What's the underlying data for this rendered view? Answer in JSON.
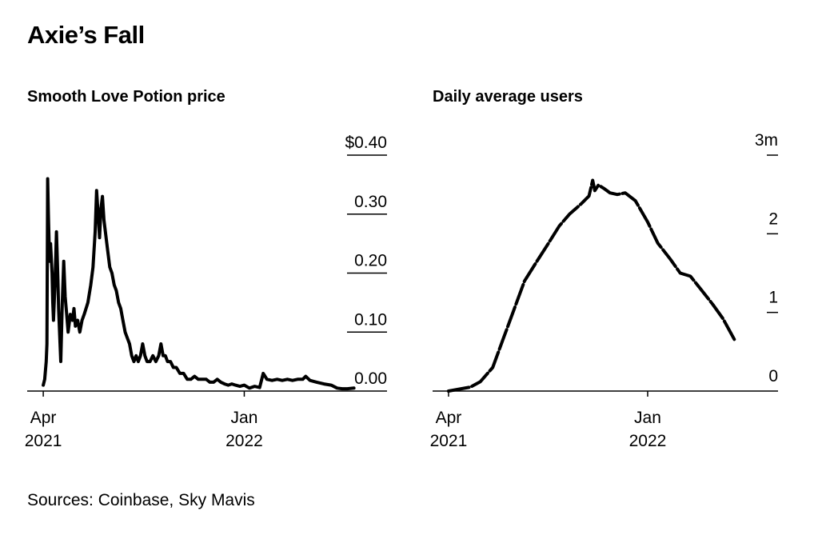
{
  "title": "Axie’s Fall",
  "sources": "Sources: Coinbase, Sky Mavis",
  "colors": {
    "line": "#000000",
    "background": "#ffffff"
  },
  "chart_data": [
    {
      "type": "line",
      "title": "Smooth Love Potion price",
      "xlabel": "",
      "ylabel": "",
      "ylim": [
        0,
        0.4
      ],
      "y_ticks": [
        0,
        0.1,
        0.2,
        0.3,
        0.4
      ],
      "y_tick_labels": [
        "0.00",
        "0.10",
        "0.20",
        "0.30",
        "$0.40"
      ],
      "x_ticks": [
        {
          "date": "2021-04-01",
          "line1": "Apr",
          "line2": "2021"
        },
        {
          "date": "2022-01-01",
          "line1": "Jan",
          "line2": "2022"
        }
      ],
      "x_range": [
        "2021-03-10",
        "2022-06-30"
      ],
      "grid": "horizontal",
      "series": [
        {
          "dash": "solid",
          "points": [
            [
              "2021-04-01",
              0.01
            ],
            [
              "2021-04-03",
              0.02
            ],
            [
              "2021-04-05",
              0.05
            ],
            [
              "2021-04-06",
              0.08
            ],
            [
              "2021-04-07",
              0.36
            ],
            [
              "2021-04-08",
              0.3
            ],
            [
              "2021-04-09",
              0.25
            ],
            [
              "2021-04-10",
              0.22
            ],
            [
              "2021-04-11",
              0.25
            ],
            [
              "2021-04-13",
              0.2
            ],
            [
              "2021-04-14",
              0.15
            ],
            [
              "2021-04-15",
              0.12
            ],
            [
              "2021-04-17",
              0.18
            ],
            [
              "2021-04-19",
              0.27
            ],
            [
              "2021-04-21",
              0.19
            ],
            [
              "2021-04-22",
              0.14
            ],
            [
              "2021-04-24",
              0.08
            ],
            [
              "2021-04-25",
              0.05
            ],
            [
              "2021-04-27",
              0.15
            ],
            [
              "2021-04-29",
              0.22
            ],
            [
              "2021-05-01",
              0.16
            ],
            [
              "2021-05-03",
              0.13
            ],
            [
              "2021-05-05",
              0.1
            ],
            [
              "2021-05-08",
              0.13
            ],
            [
              "2021-05-11",
              0.12
            ],
            [
              "2021-05-13",
              0.14
            ],
            [
              "2021-05-15",
              0.11
            ],
            [
              "2021-05-18",
              0.12
            ],
            [
              "2021-05-21",
              0.1
            ],
            [
              "2021-05-24",
              0.12
            ],
            [
              "2021-05-27",
              0.13
            ],
            [
              "2021-06-01",
              0.15
            ],
            [
              "2021-06-05",
              0.18
            ],
            [
              "2021-06-08",
              0.21
            ],
            [
              "2021-06-11",
              0.27
            ],
            [
              "2021-06-13",
              0.34
            ],
            [
              "2021-06-15",
              0.3
            ],
            [
              "2021-06-17",
              0.26
            ],
            [
              "2021-06-19",
              0.31
            ],
            [
              "2021-06-21",
              0.33
            ],
            [
              "2021-06-23",
              0.29
            ],
            [
              "2021-06-25",
              0.27
            ],
            [
              "2021-06-28",
              0.24
            ],
            [
              "2021-07-01",
              0.21
            ],
            [
              "2021-07-04",
              0.2
            ],
            [
              "2021-07-07",
              0.18
            ],
            [
              "2021-07-10",
              0.17
            ],
            [
              "2021-07-13",
              0.15
            ],
            [
              "2021-07-16",
              0.14
            ],
            [
              "2021-07-19",
              0.12
            ],
            [
              "2021-07-22",
              0.1
            ],
            [
              "2021-07-25",
              0.09
            ],
            [
              "2021-07-28",
              0.08
            ],
            [
              "2021-07-31",
              0.06
            ],
            [
              "2021-08-03",
              0.05
            ],
            [
              "2021-08-06",
              0.06
            ],
            [
              "2021-08-09",
              0.05
            ],
            [
              "2021-08-12",
              0.06
            ],
            [
              "2021-08-15",
              0.08
            ],
            [
              "2021-08-18",
              0.06
            ],
            [
              "2021-08-21",
              0.05
            ],
            [
              "2021-08-25",
              0.05
            ],
            [
              "2021-08-29",
              0.06
            ],
            [
              "2021-09-02",
              0.05
            ],
            [
              "2021-09-06",
              0.06
            ],
            [
              "2021-09-09",
              0.08
            ],
            [
              "2021-09-12",
              0.06
            ],
            [
              "2021-09-15",
              0.06
            ],
            [
              "2021-09-18",
              0.05
            ],
            [
              "2021-09-22",
              0.05
            ],
            [
              "2021-09-26",
              0.04
            ],
            [
              "2021-09-30",
              0.04
            ],
            [
              "2021-10-05",
              0.03
            ],
            [
              "2021-10-10",
              0.03
            ],
            [
              "2021-10-15",
              0.02
            ],
            [
              "2021-10-20",
              0.02
            ],
            [
              "2021-10-25",
              0.025
            ],
            [
              "2021-10-30",
              0.02
            ],
            [
              "2021-11-05",
              0.02
            ],
            [
              "2021-11-10",
              0.02
            ],
            [
              "2021-11-15",
              0.015
            ],
            [
              "2021-11-20",
              0.015
            ],
            [
              "2021-11-25",
              0.02
            ],
            [
              "2021-11-30",
              0.015
            ],
            [
              "2021-12-05",
              0.012
            ],
            [
              "2021-12-10",
              0.01
            ],
            [
              "2021-12-15",
              0.012
            ],
            [
              "2021-12-20",
              0.01
            ],
            [
              "2021-12-26",
              0.008
            ],
            [
              "2022-01-01",
              0.01
            ],
            [
              "2022-01-08",
              0.005
            ],
            [
              "2022-01-15",
              0.008
            ],
            [
              "2022-01-22",
              0.006
            ],
            [
              "2022-01-27",
              0.03
            ],
            [
              "2022-02-01",
              0.02
            ],
            [
              "2022-02-08",
              0.018
            ],
            [
              "2022-02-15",
              0.02
            ],
            [
              "2022-02-22",
              0.018
            ],
            [
              "2022-03-01",
              0.02
            ],
            [
              "2022-03-08",
              0.018
            ],
            [
              "2022-03-15",
              0.02
            ],
            [
              "2022-03-22",
              0.02
            ],
            [
              "2022-03-26",
              0.025
            ],
            [
              "2022-04-01",
              0.018
            ],
            [
              "2022-04-10",
              0.015
            ],
            [
              "2022-04-20",
              0.012
            ],
            [
              "2022-04-30",
              0.01
            ],
            [
              "2022-05-08",
              0.005
            ],
            [
              "2022-05-15",
              0.004
            ],
            [
              "2022-05-22",
              0.004
            ],
            [
              "2022-05-31",
              0.005
            ]
          ]
        }
      ]
    },
    {
      "type": "line",
      "title": "Daily average users",
      "xlabel": "",
      "ylabel": "",
      "ylim": [
        0,
        3
      ],
      "y_ticks": [
        0,
        1,
        2,
        3
      ],
      "y_tick_labels": [
        "0",
        "1",
        "2",
        "3m"
      ],
      "x_ticks": [
        {
          "date": "2021-04-01",
          "line1": "Apr",
          "line2": "2021"
        },
        {
          "date": "2022-01-01",
          "line1": "Jan",
          "line2": "2022"
        }
      ],
      "x_range": [
        "2021-03-10",
        "2022-06-30"
      ],
      "grid": "none",
      "series": [
        {
          "dash": "dashed",
          "points": [
            [
              "2021-04-01",
              0.0
            ],
            [
              "2021-05-01",
              0.05
            ],
            [
              "2021-05-15",
              0.12
            ],
            [
              "2021-06-01",
              0.3
            ],
            [
              "2021-06-15",
              0.65
            ],
            [
              "2021-07-01",
              1.05
            ],
            [
              "2021-07-15",
              1.4
            ],
            [
              "2021-08-01",
              1.65
            ],
            [
              "2021-08-15",
              1.85
            ],
            [
              "2021-09-01",
              2.1
            ],
            [
              "2021-09-15",
              2.25
            ],
            [
              "2021-10-01",
              2.38
            ],
            [
              "2021-10-12",
              2.48
            ],
            [
              "2021-10-17",
              2.68
            ],
            [
              "2021-10-20",
              2.55
            ],
            [
              "2021-10-25",
              2.62
            ],
            [
              "2021-11-01",
              2.58
            ],
            [
              "2021-11-10",
              2.52
            ],
            [
              "2021-11-20",
              2.5
            ],
            [
              "2021-12-01",
              2.52
            ],
            [
              "2021-12-15",
              2.42
            ],
            [
              "2022-01-01",
              2.15
            ],
            [
              "2022-01-15",
              1.88
            ],
            [
              "2022-02-01",
              1.68
            ],
            [
              "2022-02-15",
              1.5
            ],
            [
              "2022-03-01",
              1.46
            ],
            [
              "2022-03-15",
              1.3
            ],
            [
              "2022-04-01",
              1.1
            ],
            [
              "2022-04-15",
              0.92
            ],
            [
              "2022-05-01",
              0.65
            ]
          ]
        }
      ]
    }
  ]
}
